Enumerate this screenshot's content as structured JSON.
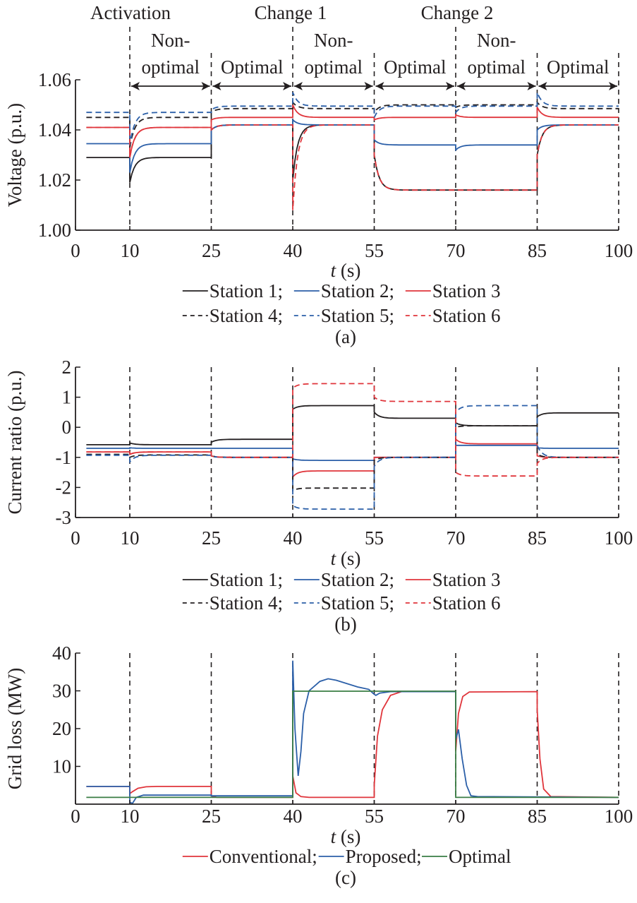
{
  "colors": {
    "black": "#231f20",
    "blue": "#2b5fa8",
    "red": "#e0353b",
    "green": "#3a7d44"
  },
  "phases": {
    "events": [
      {
        "label": "Activation",
        "t": 10
      },
      {
        "label": "Change 1",
        "t": 40
      },
      {
        "label": "Change 2",
        "t": 70
      }
    ],
    "segments": [
      {
        "line1": "Non-",
        "line2": "optimal",
        "t0": 10,
        "t1": 25
      },
      {
        "line1": "",
        "line2": "Optimal",
        "t0": 25,
        "t1": 40
      },
      {
        "line1": "Non-",
        "line2": "optimal",
        "t0": 40,
        "t1": 55
      },
      {
        "line1": "",
        "line2": "Optimal",
        "t0": 55,
        "t1": 70
      },
      {
        "line1": "Non-",
        "line2": "optimal",
        "t0": 70,
        "t1": 85
      },
      {
        "line1": "",
        "line2": "Optimal",
        "t0": 85,
        "t1": 100
      }
    ]
  },
  "chart_data": [
    {
      "id": "a",
      "type": "line",
      "caption": "(a)",
      "xlabel_italic": "t",
      "xlabel_rest": " (s)",
      "ylabel": "Voltage (p.u.)",
      "xlim": [
        0,
        100
      ],
      "ylim": [
        1.0,
        1.06
      ],
      "xticks": [
        0,
        10,
        25,
        40,
        55,
        70,
        85,
        100
      ],
      "yticks": [
        1.0,
        1.02,
        1.04,
        1.06
      ],
      "ytick_labels": [
        "1.00",
        "1.02",
        "1.04",
        "1.06"
      ],
      "vlines": [
        10,
        25,
        40,
        55,
        70,
        85,
        100
      ],
      "legend_rows": [
        [
          {
            "name": "Station 1;",
            "color": "black",
            "dash": false
          },
          {
            "name": "Station 2;",
            "color": "blue",
            "dash": false
          },
          {
            "name": "Station 3",
            "color": "red",
            "dash": false
          }
        ],
        [
          {
            "name": "Station 4;",
            "color": "black",
            "dash": true
          },
          {
            "name": "Station 5;",
            "color": "blue",
            "dash": true
          },
          {
            "name": "Station 6",
            "color": "red",
            "dash": true
          }
        ]
      ],
      "series": [
        {
          "name": "Station 1",
          "color": "black",
          "dash": false,
          "start": 1.029,
          "steps": [
            {
              "t": 10,
              "jump": 1.019,
              "level": 1.029
            },
            {
              "t": 25,
              "jump": 1.04,
              "level": 1.042
            },
            {
              "t": 40,
              "jump": 1.02,
              "level": 1.042
            },
            {
              "t": 55,
              "jump": 1.03,
              "level": 1.016
            },
            {
              "t": 70,
              "jump": 1.016,
              "level": 1.016
            },
            {
              "t": 85,
              "jump": 1.03,
              "level": 1.042
            }
          ]
        },
        {
          "name": "Station 2",
          "color": "blue",
          "dash": false,
          "start": 1.0345,
          "steps": [
            {
              "t": 10,
              "jump": 1.023,
              "level": 1.0345
            },
            {
              "t": 25,
              "jump": 1.04,
              "level": 1.042
            },
            {
              "t": 40,
              "jump": 1.044,
              "level": 1.042
            },
            {
              "t": 55,
              "jump": 1.036,
              "level": 1.034
            },
            {
              "t": 70,
              "jump": 1.032,
              "level": 1.034
            },
            {
              "t": 85,
              "jump": 1.04,
              "level": 1.042
            }
          ]
        },
        {
          "name": "Station 3",
          "color": "red",
          "dash": false,
          "start": 1.041,
          "steps": [
            {
              "t": 10,
              "jump": 1.029,
              "level": 1.041
            },
            {
              "t": 25,
              "jump": 1.044,
              "level": 1.045
            },
            {
              "t": 40,
              "jump": 1.05,
              "level": 1.045
            },
            {
              "t": 55,
              "jump": 1.044,
              "level": 1.045
            },
            {
              "t": 70,
              "jump": 1.046,
              "level": 1.045
            },
            {
              "t": 85,
              "jump": 1.049,
              "level": 1.045
            }
          ]
        },
        {
          "name": "Station 4",
          "color": "black",
          "dash": true,
          "start": 1.045,
          "steps": [
            {
              "t": 10,
              "jump": 1.033,
              "level": 1.045
            },
            {
              "t": 25,
              "jump": 1.047,
              "level": 1.0485
            },
            {
              "t": 40,
              "jump": 1.051,
              "level": 1.0485
            },
            {
              "t": 55,
              "jump": 1.047,
              "level": 1.05
            },
            {
              "t": 70,
              "jump": 1.049,
              "level": 1.05
            },
            {
              "t": 85,
              "jump": 1.051,
              "level": 1.0485
            }
          ]
        },
        {
          "name": "Station 5",
          "color": "blue",
          "dash": true,
          "start": 1.047,
          "steps": [
            {
              "t": 10,
              "jump": 1.034,
              "level": 1.047
            },
            {
              "t": 25,
              "jump": 1.048,
              "level": 1.0495
            },
            {
              "t": 40,
              "jump": 1.055,
              "level": 1.0495
            },
            {
              "t": 55,
              "jump": 1.045,
              "level": 1.0495
            },
            {
              "t": 70,
              "jump": 1.047,
              "level": 1.0495
            },
            {
              "t": 85,
              "jump": 1.055,
              "level": 1.0495
            }
          ]
        },
        {
          "name": "Station 6",
          "color": "red",
          "dash": true,
          "start": 1.041,
          "steps": [
            {
              "t": 10,
              "jump": 1.029,
              "level": 1.041
            },
            {
              "t": 25,
              "jump": 1.04,
              "level": 1.042
            },
            {
              "t": 40,
              "jump": 1.008,
              "level": 1.042
            },
            {
              "t": 55,
              "jump": 1.03,
              "level": 1.016
            },
            {
              "t": 70,
              "jump": 1.016,
              "level": 1.016
            },
            {
              "t": 85,
              "jump": 1.03,
              "level": 1.042
            }
          ]
        }
      ]
    },
    {
      "id": "b",
      "type": "line",
      "caption": "(b)",
      "xlabel_italic": "t",
      "xlabel_rest": " (s)",
      "ylabel": "Current ratio (p.u.)",
      "xlim": [
        0,
        100
      ],
      "ylim": [
        -3,
        2
      ],
      "xticks": [
        0,
        10,
        25,
        40,
        55,
        70,
        85,
        100
      ],
      "yticks": [
        -3,
        -2,
        -1,
        0,
        1,
        2
      ],
      "ytick_labels": [
        "-3",
        "-2",
        "-1",
        "0",
        "1",
        "2"
      ],
      "vlines": [
        10,
        25,
        40,
        55,
        70,
        85,
        100
      ],
      "legend_rows": [
        [
          {
            "name": "Station 1;",
            "color": "black",
            "dash": false
          },
          {
            "name": "Station 2;",
            "color": "blue",
            "dash": false
          },
          {
            "name": "Station 3",
            "color": "red",
            "dash": false
          }
        ],
        [
          {
            "name": "Station 4;",
            "color": "black",
            "dash": true
          },
          {
            "name": "Station 5;",
            "color": "blue",
            "dash": true
          },
          {
            "name": "Station 6",
            "color": "red",
            "dash": true
          }
        ]
      ],
      "series": [
        {
          "name": "Station 1",
          "color": "black",
          "dash": false,
          "start": -0.58,
          "steps": [
            {
              "t": 10,
              "jump": -0.52,
              "level": -0.58
            },
            {
              "t": 25,
              "jump": -0.5,
              "level": -0.4
            },
            {
              "t": 40,
              "jump": 0.6,
              "level": 0.72
            },
            {
              "t": 55,
              "jump": 0.5,
              "level": 0.3
            },
            {
              "t": 70,
              "jump": 0.15,
              "level": 0.05
            },
            {
              "t": 85,
              "jump": 0.35,
              "level": 0.48
            }
          ]
        },
        {
          "name": "Station 2",
          "color": "blue",
          "dash": false,
          "start": -0.7,
          "steps": [
            {
              "t": 10,
              "jump": -0.68,
              "level": -0.7
            },
            {
              "t": 25,
              "jump": -0.7,
              "level": -0.7
            },
            {
              "t": 40,
              "jump": -1.05,
              "level": -1.1
            },
            {
              "t": 55,
              "jump": -1.0,
              "level": -1.0
            },
            {
              "t": 70,
              "jump": -0.6,
              "level": -0.6
            },
            {
              "t": 85,
              "jump": -0.68,
              "level": -0.7
            }
          ]
        },
        {
          "name": "Station 3",
          "color": "red",
          "dash": false,
          "start": -0.82,
          "steps": [
            {
              "t": 10,
              "jump": -0.9,
              "level": -0.82
            },
            {
              "t": 25,
              "jump": -0.95,
              "level": -1.0
            },
            {
              "t": 40,
              "jump": -1.65,
              "level": -1.45
            },
            {
              "t": 55,
              "jump": -1.0,
              "level": -1.0
            },
            {
              "t": 70,
              "jump": -0.4,
              "level": -0.55
            },
            {
              "t": 85,
              "jump": -0.95,
              "level": -1.0
            }
          ]
        },
        {
          "name": "Station 4",
          "color": "black",
          "dash": true,
          "start": -0.9,
          "steps": [
            {
              "t": 10,
              "jump": -1.0,
              "level": -0.92
            },
            {
              "t": 25,
              "jump": -0.95,
              "level": -1.0
            },
            {
              "t": 40,
              "jump": -2.1,
              "level": -2.02
            },
            {
              "t": 55,
              "jump": -1.1,
              "level": -1.0
            },
            {
              "t": 70,
              "jump": 0.0,
              "level": 0.05
            },
            {
              "t": 85,
              "jump": -0.9,
              "level": -1.0
            }
          ]
        },
        {
          "name": "Station 5",
          "color": "blue",
          "dash": true,
          "start": -0.93,
          "steps": [
            {
              "t": 10,
              "jump": -1.15,
              "level": -0.93
            },
            {
              "t": 25,
              "jump": -0.97,
              "level": -1.0
            },
            {
              "t": 40,
              "jump": -2.6,
              "level": -2.72
            },
            {
              "t": 55,
              "jump": -1.3,
              "level": -1.0
            },
            {
              "t": 70,
              "jump": 0.5,
              "level": 0.72
            },
            {
              "t": 85,
              "jump": -0.6,
              "level": -1.0
            }
          ]
        },
        {
          "name": "Station 6",
          "color": "red",
          "dash": true,
          "start": -0.82,
          "steps": [
            {
              "t": 10,
              "jump": -0.9,
              "level": -0.82
            },
            {
              "t": 25,
              "jump": -0.95,
              "level": -1.0
            },
            {
              "t": 40,
              "jump": 1.3,
              "level": 1.45
            },
            {
              "t": 55,
              "jump": 1.0,
              "level": 0.86
            },
            {
              "t": 70,
              "jump": -1.5,
              "level": -1.62
            },
            {
              "t": 85,
              "jump": -1.2,
              "level": -1.0
            }
          ]
        }
      ]
    },
    {
      "id": "c",
      "type": "line",
      "caption": "(c)",
      "xlabel_italic": "t",
      "xlabel_rest": " (s)",
      "ylabel": "Grid loss (MW)",
      "xlim": [
        0,
        100
      ],
      "ylim": [
        0,
        40
      ],
      "xticks": [
        0,
        10,
        25,
        40,
        55,
        70,
        85,
        100
      ],
      "yticks": [
        10,
        20,
        30,
        40
      ],
      "ytick_labels": [
        "10",
        "20",
        "30",
        "40"
      ],
      "vlines": [
        10,
        25,
        40,
        55,
        70,
        85,
        100
      ],
      "legend_rows": [
        [
          {
            "name": "Conventional;",
            "color": "red",
            "dash": false
          },
          {
            "name": "Proposed;",
            "color": "blue",
            "dash": false
          },
          {
            "name": "Optimal",
            "color": "green",
            "dash": false
          }
        ]
      ],
      "series": [
        {
          "name": "Conventional",
          "color": "red",
          "dash": false,
          "points": [
            [
              2,
              4.7
            ],
            [
              10,
              4.7
            ],
            [
              10,
              2.8
            ],
            [
              10.5,
              3.3
            ],
            [
              11.5,
              4.2
            ],
            [
              13,
              4.6
            ],
            [
              15,
              4.7
            ],
            [
              25,
              4.7
            ],
            [
              25,
              2.2
            ],
            [
              26,
              1.8
            ],
            [
              40,
              1.8
            ],
            [
              40,
              7.5
            ],
            [
              40.6,
              3
            ],
            [
              41.5,
              2
            ],
            [
              43,
              1.8
            ],
            [
              55,
              1.8
            ],
            [
              55,
              5
            ],
            [
              55.6,
              18
            ],
            [
              56.5,
              25
            ],
            [
              58,
              28.8
            ],
            [
              60,
              29.8
            ],
            [
              70,
              29.8
            ],
            [
              70,
              14
            ],
            [
              70.5,
              24
            ],
            [
              71.3,
              28.5
            ],
            [
              72.5,
              29.7
            ],
            [
              85,
              29.8
            ],
            [
              85,
              25
            ],
            [
              85.5,
              12
            ],
            [
              86.2,
              4
            ],
            [
              87.5,
              2
            ],
            [
              100,
              1.8
            ]
          ]
        },
        {
          "name": "Proposed",
          "color": "blue",
          "dash": false,
          "points": [
            [
              2,
              4.7
            ],
            [
              10,
              4.7
            ],
            [
              10,
              0.5
            ],
            [
              10.5,
              0.2
            ],
            [
              11.2,
              1.8
            ],
            [
              12.5,
              2.4
            ],
            [
              25,
              2.4
            ],
            [
              25,
              2.2
            ],
            [
              40,
              2.2
            ],
            [
              40,
              38
            ],
            [
              40.4,
              20
            ],
            [
              41,
              7.5
            ],
            [
              41.5,
              14
            ],
            [
              42,
              24
            ],
            [
              43,
              30
            ],
            [
              45,
              32.5
            ],
            [
              46.5,
              33.2
            ],
            [
              48,
              32.8
            ],
            [
              52,
              31
            ],
            [
              54,
              30.4
            ],
            [
              54.8,
              29.3
            ],
            [
              55.3,
              28.8
            ],
            [
              56,
              29.4
            ],
            [
              58,
              29.8
            ],
            [
              70,
              29.8
            ],
            [
              70,
              17
            ],
            [
              70.5,
              19.8
            ],
            [
              71.2,
              12
            ],
            [
              72,
              5
            ],
            [
              72.8,
              2.2
            ],
            [
              74,
              2
            ],
            [
              100,
              1.8
            ]
          ]
        },
        {
          "name": "Optimal",
          "color": "green",
          "dash": false,
          "points": [
            [
              2,
              1.8
            ],
            [
              40,
              1.8
            ],
            [
              40,
              29.9
            ],
            [
              70,
              29.9
            ],
            [
              70,
              1.8
            ],
            [
              100,
              1.8
            ]
          ]
        }
      ]
    }
  ]
}
